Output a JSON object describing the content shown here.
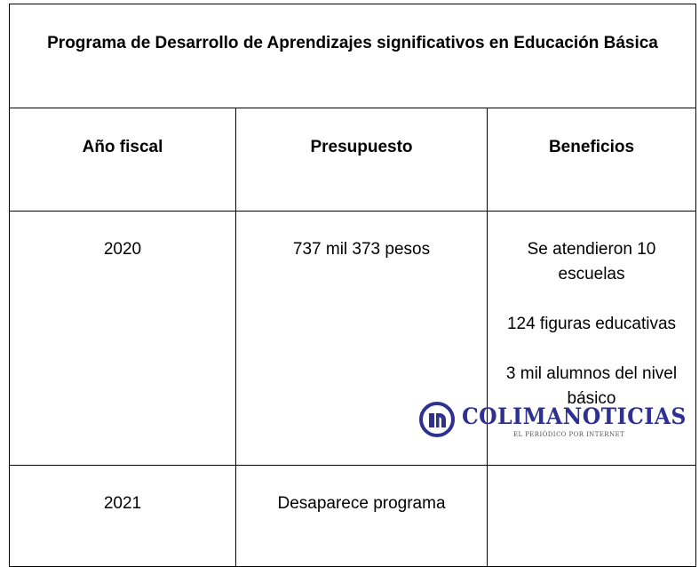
{
  "table": {
    "title": "Programa de Desarrollo de Aprendizajes significativos en Educación Básica",
    "headers": [
      "Año fiscal",
      "Presupuesto",
      "Beneficios"
    ],
    "rows": [
      {
        "year": "2020",
        "budget": "737 mil 373 pesos",
        "benefits": [
          "Se atendieron 10 escuelas",
          "124 figuras educativas",
          "3 mil alumnos del nivel básico"
        ]
      },
      {
        "year": "2021",
        "budget": "Desaparece programa",
        "benefits": []
      }
    ]
  },
  "watermark": {
    "brand": "COLIMANOTICIAS",
    "tagline": "EL PERIÓDICO POR INTERNET",
    "brand_color": "#2e3192"
  }
}
